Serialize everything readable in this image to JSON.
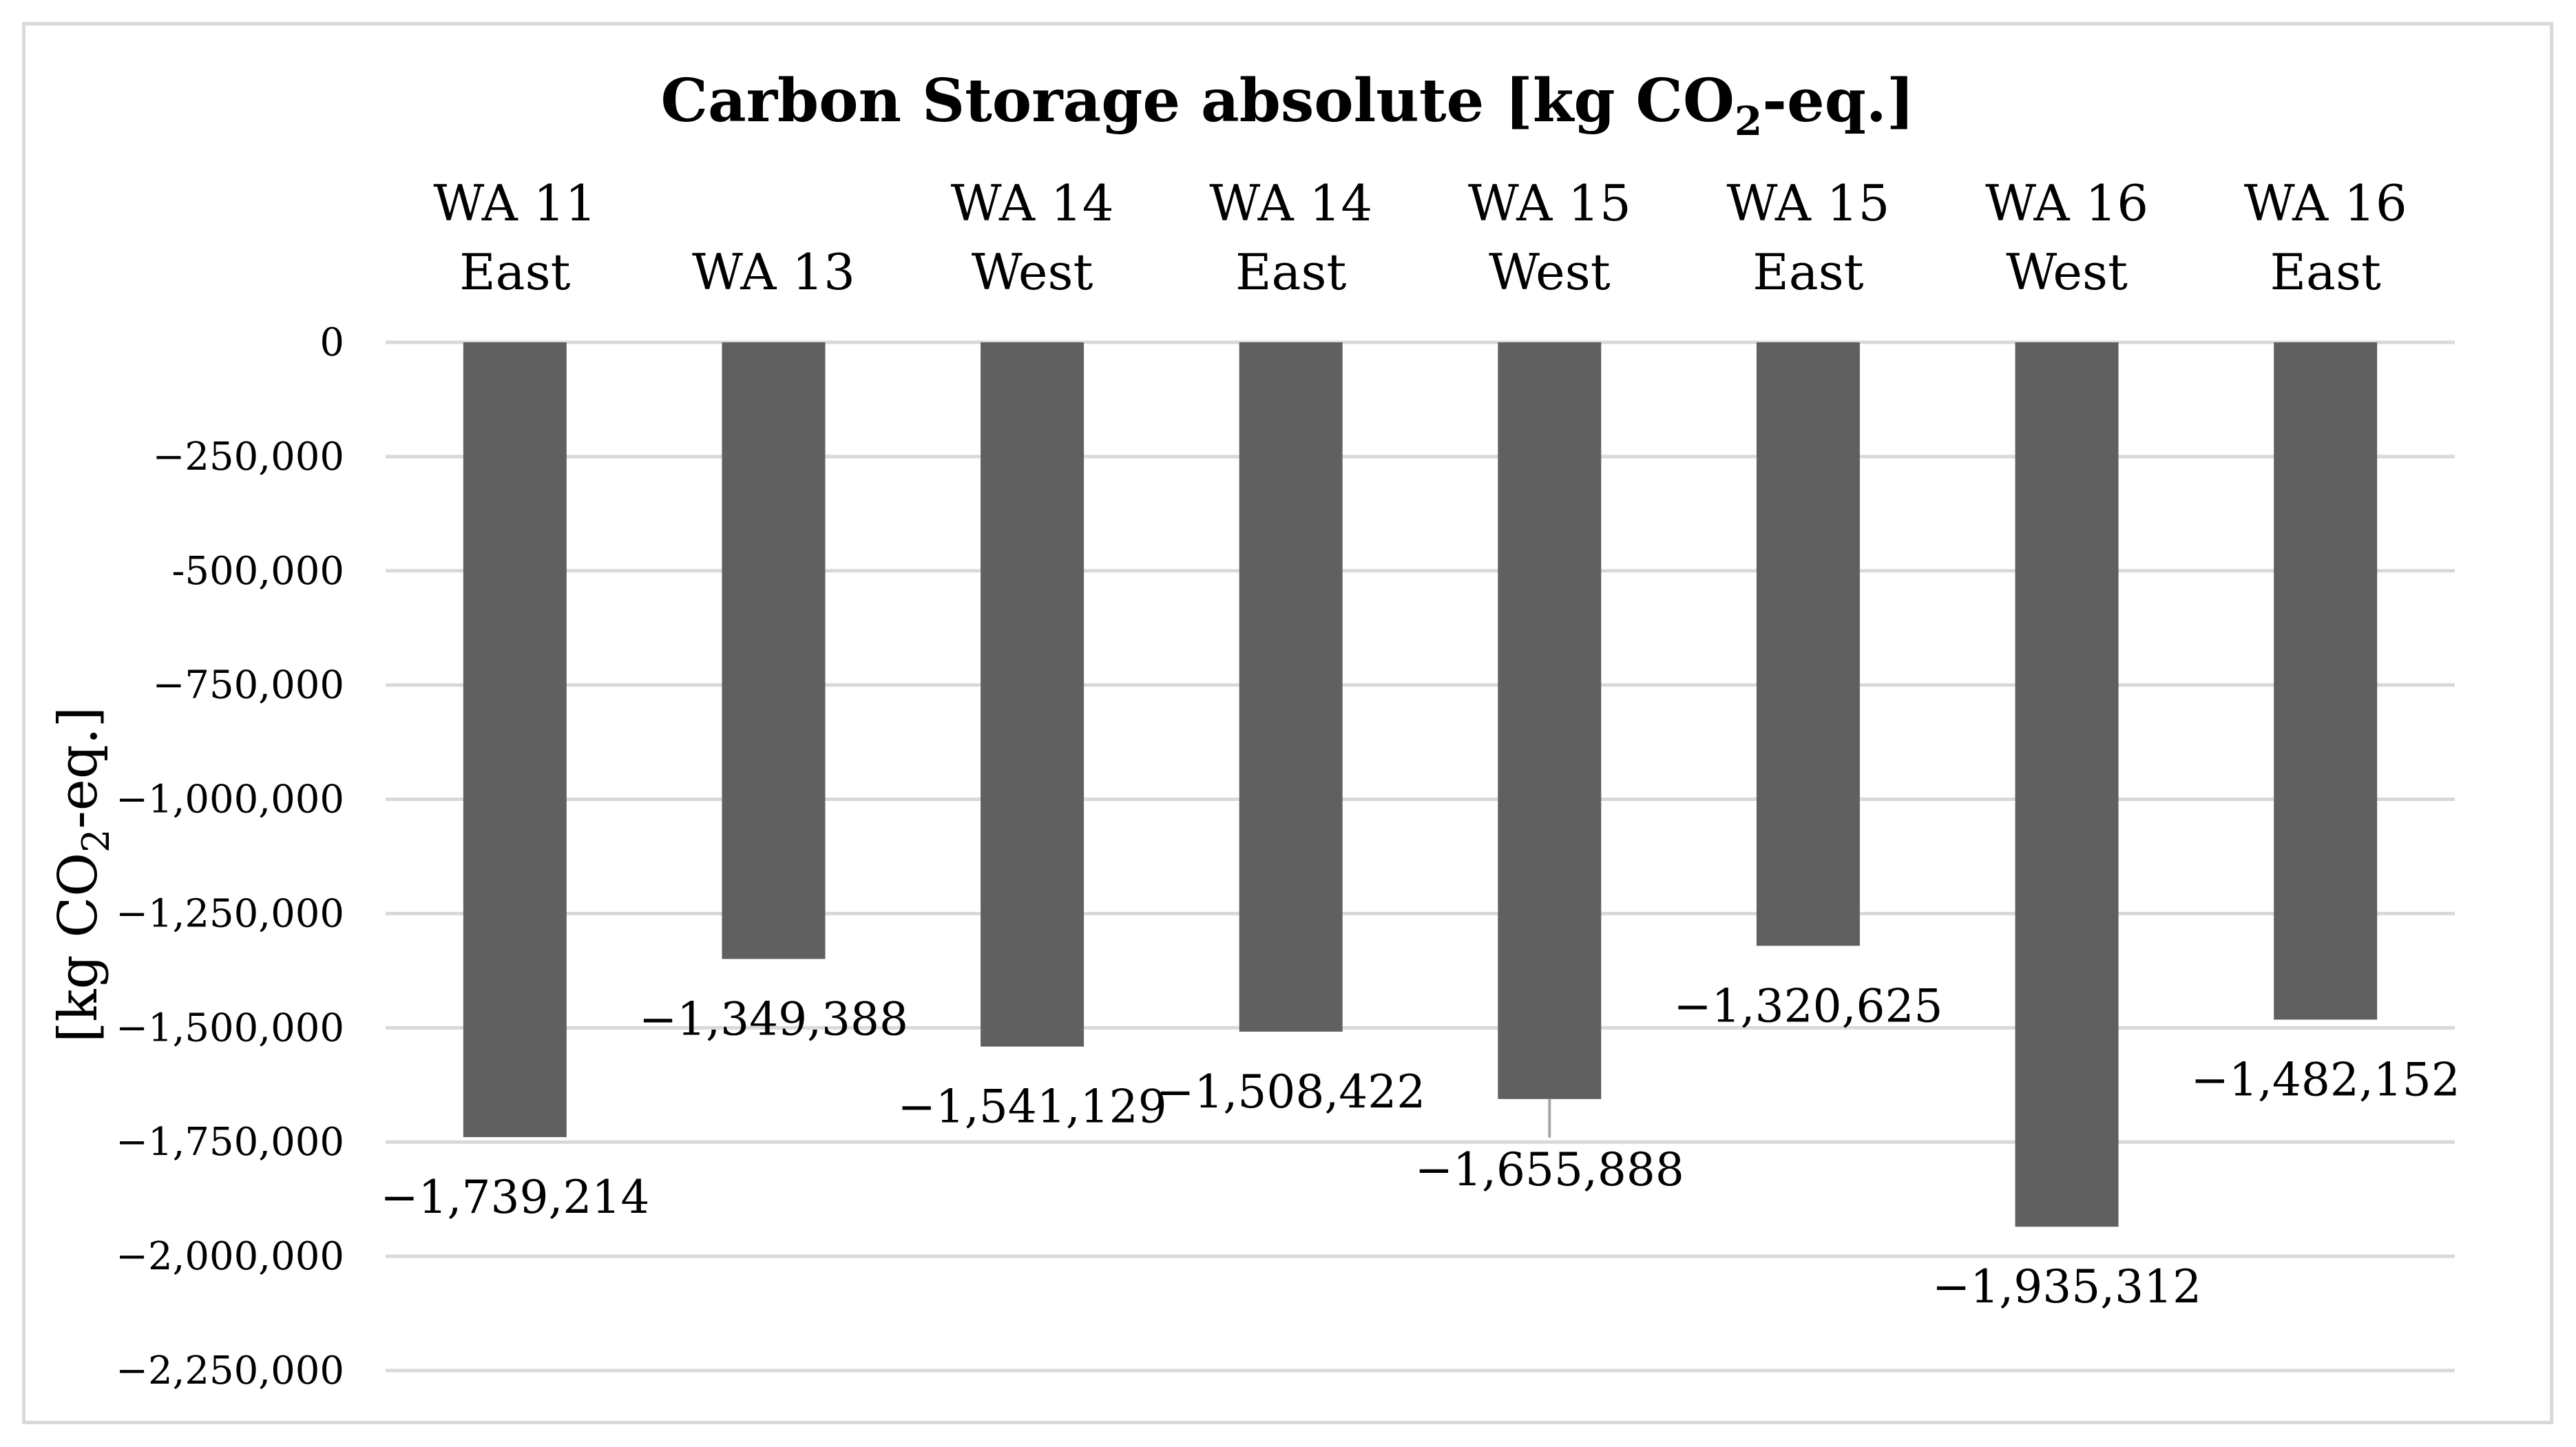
{
  "chart_data": {
    "type": "bar",
    "title": {
      "main": "Carbon Storage absolute [kg CO",
      "sub": "2",
      "tail": "-eq.]"
    },
    "ylabel": {
      "main": "[kg CO",
      "sub": "2",
      "tail": "-eq.]"
    },
    "xlabel": "",
    "categories": [
      [
        "WA 11",
        "East"
      ],
      [
        "WA 13"
      ],
      [
        "WA 14",
        "West"
      ],
      [
        "WA 14",
        "East"
      ],
      [
        "WA 15",
        "West"
      ],
      [
        "WA 15",
        "East"
      ],
      [
        "WA 16",
        "West"
      ],
      [
        "WA 16",
        "East"
      ]
    ],
    "values": [
      -1739214,
      -1349388,
      -1541129,
      -1508422,
      -1655888,
      -1320625,
      -1935312,
      -1482152
    ],
    "data_labels": [
      "−1,739,214",
      "−1,349,388",
      "−1,541,129",
      "−1,508,422",
      "−1,655,888",
      "−1,320,625",
      "−1,935,312",
      "−1,482,152"
    ],
    "ylim": [
      -2250000,
      0
    ],
    "yticks": [
      0,
      -250000,
      -500000,
      -750000,
      -1000000,
      -1250000,
      -1500000,
      -1750000,
      -2000000,
      -2250000
    ],
    "ytick_labels": [
      "0",
      "−250,000",
      "-500,000",
      "−750,000",
      "−1,000,000",
      "−1,250,000",
      "−1,500,000",
      "−1,750,000",
      "−2,000,000",
      "−2,250,000"
    ],
    "bar_color": "#606060",
    "grid": true,
    "legend": "none"
  }
}
